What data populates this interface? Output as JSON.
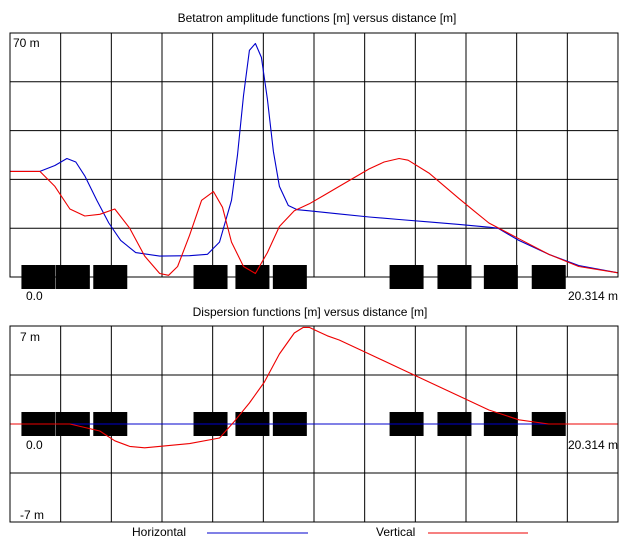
{
  "chart_data": [
    {
      "type": "line",
      "title": "Betatron amplitude functions [m] versus distance [m]",
      "y_top_label": "70 m",
      "x_start_label": "0.0",
      "x_end_label": "20.314 m",
      "xlim": [
        0,
        20.314
      ],
      "ylim": [
        0,
        70
      ],
      "grid": true,
      "series": [
        {
          "name": "Horizontal",
          "color": "#0000cc",
          "x": [
            0,
            1.0,
            1.5,
            1.9,
            2.2,
            2.5,
            2.9,
            3.3,
            3.7,
            4.2,
            5.0,
            6.0,
            6.6,
            7.0,
            7.4,
            7.6,
            7.8,
            8.0,
            8.2,
            8.4,
            8.6,
            8.8,
            9.0,
            9.3,
            9.6,
            10.0,
            11.0,
            12.0,
            13.0,
            14.0,
            15.0,
            16.0,
            16.3,
            17.0,
            18.0,
            19.0,
            20.314
          ],
          "y": [
            30.3,
            30.3,
            32,
            34,
            33,
            29,
            22,
            15.5,
            10.5,
            7,
            6,
            6.1,
            6.5,
            10,
            22,
            35,
            52,
            65,
            67,
            63,
            51,
            36,
            26,
            20.5,
            19.3,
            19,
            18.1,
            17.2,
            16.5,
            15.8,
            15.1,
            14.3,
            14,
            10.5,
            6.5,
            3.3,
            1.2
          ]
        },
        {
          "name": "Vertical",
          "color": "#ee0000",
          "x": [
            0,
            1.0,
            1.5,
            2.0,
            2.5,
            3.0,
            3.5,
            4.0,
            4.5,
            5.0,
            5.3,
            5.6,
            6.0,
            6.4,
            6.8,
            7.1,
            7.4,
            7.8,
            8.2,
            8.6,
            9.0,
            9.5,
            10.0,
            10.5,
            11.0,
            12.0,
            12.5,
            13.0,
            13.3,
            14.0,
            15.0,
            15.5,
            16.0,
            17.0,
            18.0,
            19.0,
            20.314
          ],
          "y": [
            30.3,
            30.3,
            26,
            19.5,
            17.5,
            18,
            19.5,
            14,
            6,
            1,
            0.5,
            3,
            12,
            22,
            24.5,
            20,
            10,
            3,
            1,
            7,
            14.5,
            19,
            21,
            23.5,
            26,
            31,
            33,
            34,
            33.5,
            29.8,
            22.5,
            19,
            15.5,
            11,
            6.5,
            3,
            1.2
          ]
        }
      ],
      "elements": [
        0.95,
        2.1,
        3.35,
        6.7,
        8.1,
        9.35,
        13.25,
        14.85,
        16.4,
        18.0
      ]
    },
    {
      "type": "line",
      "title": "Dispersion functions [m] versus distance [m]",
      "y_top_label": "7 m",
      "y_bottom_label": "-7 m",
      "x_start_label": "0.0",
      "x_end_label": "20.314 m",
      "xlim": [
        0,
        20.314
      ],
      "ylim": [
        -7,
        7
      ],
      "grid": true,
      "series": [
        {
          "name": "Horizontal",
          "color": "#0000cc",
          "x": [
            0,
            20.314
          ],
          "y": [
            0,
            0
          ]
        },
        {
          "name": "Vertical",
          "color": "#ee0000",
          "x": [
            0,
            2.0,
            3.0,
            3.5,
            4.0,
            4.5,
            6.0,
            7.0,
            7.5,
            8.0,
            8.5,
            9.0,
            9.5,
            9.8,
            10.0,
            10.3,
            10.6,
            11.0,
            12.0,
            13.0,
            14.0,
            15.0,
            16.0,
            17.0,
            18.0,
            19.0,
            20.314
          ],
          "y": [
            0,
            0,
            -0.5,
            -1.2,
            -1.6,
            -1.7,
            -1.4,
            -1.0,
            0.2,
            1.5,
            3,
            5,
            6.5,
            6.9,
            6.9,
            6.6,
            6.3,
            6.0,
            5.0,
            4.0,
            3.0,
            2.0,
            1.0,
            0.3,
            0,
            0,
            0
          ]
        }
      ],
      "elements": [
        0.95,
        2.1,
        3.35,
        6.7,
        8.1,
        9.35,
        13.25,
        14.85,
        16.4,
        18.0
      ]
    }
  ],
  "legend": [
    {
      "label": "Horizontal",
      "color": "#0000cc"
    },
    {
      "label": "Vertical",
      "color": "#ee0000"
    }
  ]
}
